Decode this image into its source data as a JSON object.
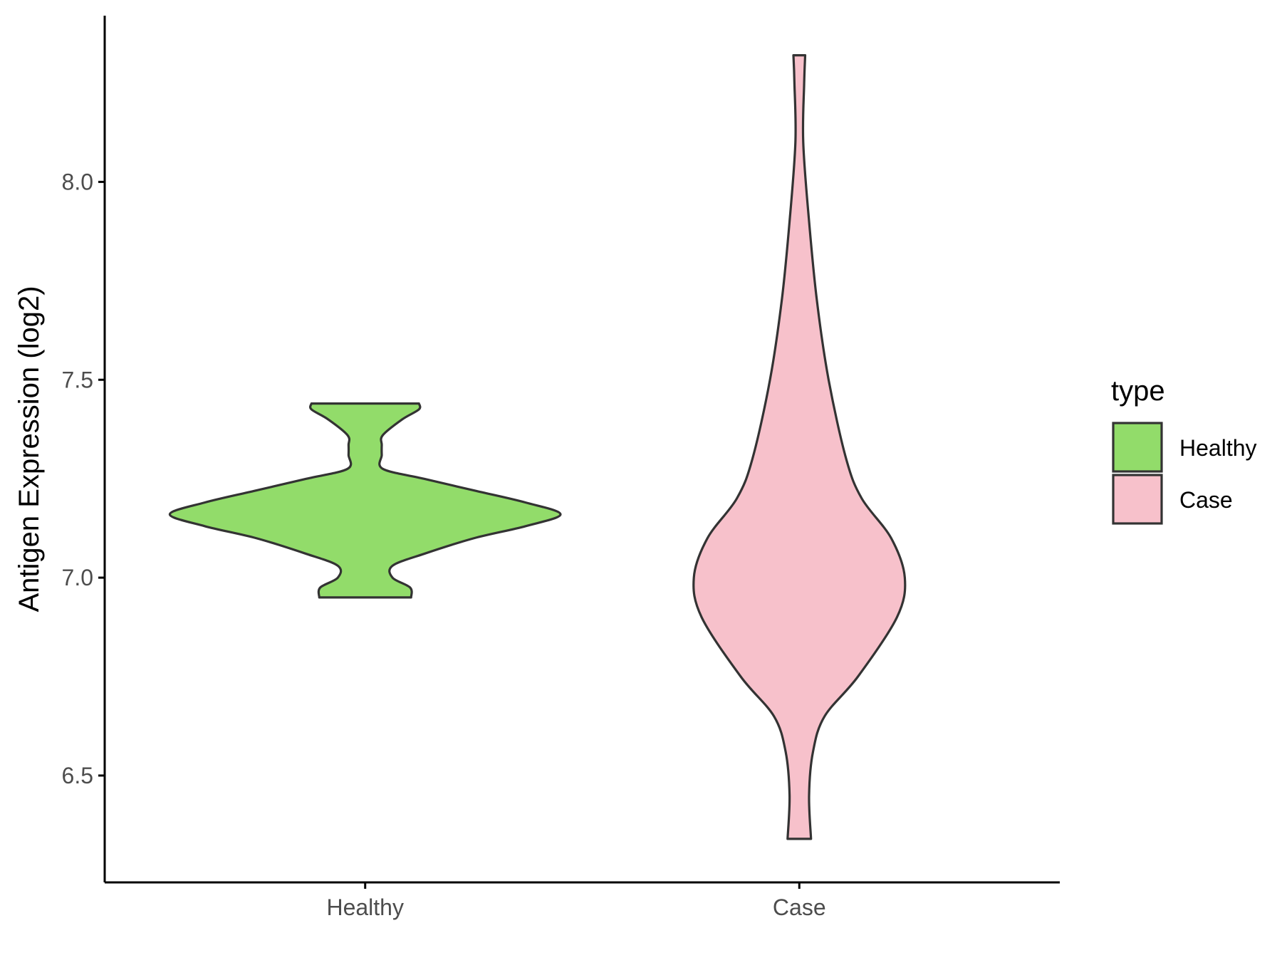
{
  "chart_data": {
    "type": "violin",
    "title": "",
    "xlabel": "",
    "ylabel": "Antigen Expression (log2)",
    "categories": [
      "Healthy",
      "Case"
    ],
    "ylim": [
      6.23,
      8.42
    ],
    "yticks": [
      6.5,
      7.0,
      7.5,
      8.0
    ],
    "ytick_labels": [
      "6.5",
      "7.0",
      "7.5",
      "8.0"
    ],
    "grid": false,
    "legend": {
      "title": "type",
      "position": "right",
      "entries": [
        {
          "label": "Healthy",
          "color": "#92DC6A"
        },
        {
          "label": "Case",
          "color": "#F7C1CB"
        }
      ]
    },
    "series": [
      {
        "name": "Healthy",
        "category": "Healthy",
        "color": "#92DC6A",
        "min": 6.95,
        "max": 7.44,
        "density_profile": [
          [
            6.95,
            0.235
          ],
          [
            6.975,
            0.23
          ],
          [
            7.0,
            0.14
          ],
          [
            7.03,
            0.14
          ],
          [
            7.06,
            0.3
          ],
          [
            7.1,
            0.56
          ],
          [
            7.13,
            0.82
          ],
          [
            7.16,
            1.0
          ],
          [
            7.19,
            0.82
          ],
          [
            7.22,
            0.56
          ],
          [
            7.25,
            0.3
          ],
          [
            7.275,
            0.09
          ],
          [
            7.31,
            0.085
          ],
          [
            7.335,
            0.085
          ],
          [
            7.36,
            0.09
          ],
          [
            7.4,
            0.19
          ],
          [
            7.425,
            0.275
          ],
          [
            7.44,
            0.275
          ]
        ]
      },
      {
        "name": "Case",
        "category": "Case",
        "color": "#F7C1CB",
        "min": 6.34,
        "max": 8.32,
        "density_profile": [
          [
            6.34,
            0.06
          ],
          [
            6.45,
            0.05
          ],
          [
            6.56,
            0.07
          ],
          [
            6.65,
            0.13
          ],
          [
            6.75,
            0.3
          ],
          [
            6.9,
            0.5
          ],
          [
            7.0,
            0.54
          ],
          [
            7.1,
            0.47
          ],
          [
            7.2,
            0.32
          ],
          [
            7.3,
            0.24
          ],
          [
            7.5,
            0.15
          ],
          [
            7.7,
            0.09
          ],
          [
            7.9,
            0.05
          ],
          [
            8.1,
            0.02
          ],
          [
            8.25,
            0.025
          ],
          [
            8.32,
            0.03
          ]
        ]
      }
    ]
  }
}
